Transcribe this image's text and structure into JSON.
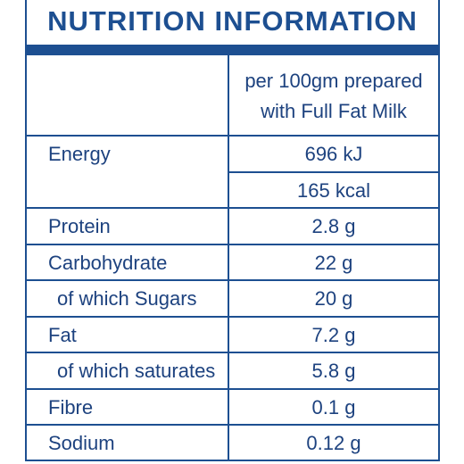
{
  "title": "NUTRITION INFORMATION",
  "header": {
    "lines": [
      "per 100gm prepared",
      "with Full Fat Milk"
    ]
  },
  "rows": [
    {
      "label": "Energy",
      "value": "696 kJ"
    },
    {
      "value": "165 kcal"
    },
    {
      "label": "Protein",
      "value": "2.8 g"
    },
    {
      "label": "Carbohydrate",
      "value": "22 g"
    },
    {
      "label": "of which Sugars",
      "value": "20 g",
      "indent": true
    },
    {
      "label": "Fat",
      "value": "7.2 g"
    },
    {
      "label": "of which saturates",
      "value": "5.8 g",
      "indent": true
    },
    {
      "label": "Fibre",
      "value": "0.1 g"
    },
    {
      "label": "Sodium",
      "value": "0.12 g"
    }
  ]
}
